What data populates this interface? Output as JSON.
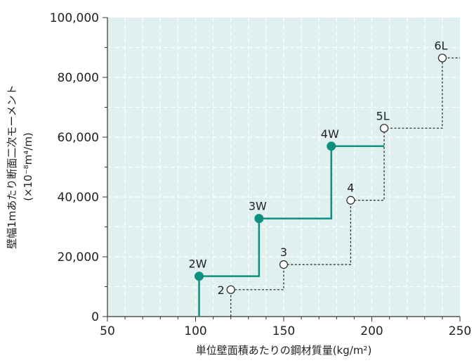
{
  "chart_data": {
    "type": "line",
    "title": "",
    "xlabel": "単位壁面積あたりの鋼材質量(kg/m²)",
    "ylabel": "壁幅1mあたり断面二次モーメント",
    "ylabel_unit": "(×10⁻⁸m⁴/m)",
    "xlim": [
      50,
      250
    ],
    "ylim": [
      0,
      100000
    ],
    "x_ticks": [
      50,
      100,
      150,
      200,
      250
    ],
    "x_tick_labels": [
      "50",
      "100",
      "150",
      "200",
      "250"
    ],
    "y_ticks": [
      0,
      20000,
      40000,
      60000,
      80000,
      100000
    ],
    "y_tick_labels": [
      "0",
      "20,000",
      "40,000",
      "60,000",
      "80,000",
      "100,000"
    ],
    "grid": true,
    "colors": {
      "plot_bg": "#dff0ef",
      "grid": "#ffffff",
      "w_series": "#0e8f80",
      "std_series": "#333333",
      "axis": "#333333"
    },
    "series": [
      {
        "style": "solid-filled",
        "points": [
          {
            "label": "2W",
            "x": 102,
            "y": 13500
          },
          {
            "label": "3W",
            "x": 136,
            "y": 32800
          },
          {
            "label": "4W",
            "x": 177,
            "y": 57000
          }
        ],
        "step_start_x": 102,
        "step_end_x": 207
      },
      {
        "style": "dashed-open",
        "points": [
          {
            "label": "2",
            "x": 120,
            "y": 9000
          },
          {
            "label": "3",
            "x": 150,
            "y": 17400
          },
          {
            "label": "4",
            "x": 188,
            "y": 38900
          },
          {
            "label": "5L",
            "x": 207,
            "y": 63000
          },
          {
            "label": "6L",
            "x": 240,
            "y": 86500
          }
        ],
        "step_start_x": 120,
        "step_end_x": 250
      }
    ]
  }
}
